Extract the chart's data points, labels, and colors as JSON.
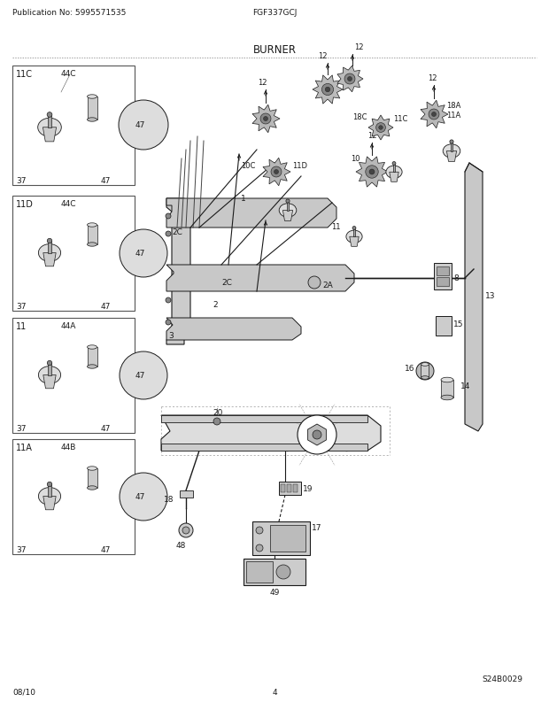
{
  "title": "BURNER",
  "publication": "Publication No: 5995571535",
  "model": "FGF337GCJ",
  "date": "08/10",
  "page": "4",
  "diagram_id": "S24B0029",
  "bg": "#ffffff",
  "fg": "#000000",
  "gray": "#888888",
  "lgray": "#cccccc",
  "fig_width": 6.2,
  "fig_height": 8.03,
  "dpi": 100
}
